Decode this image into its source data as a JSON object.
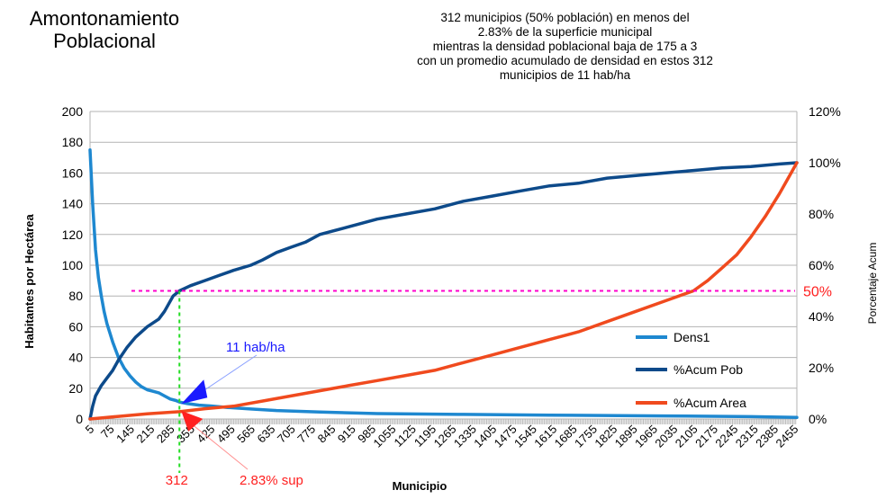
{
  "chart_data": {
    "type": "line",
    "title": [
      "Amontonamiento",
      "Poblacional"
    ],
    "subtitle": [
      "312 municipios (50% población) en menos del",
      "2.83% de la superficie municipal",
      "mientras la densidad poblacional baja de 175 a 3",
      "con un promedio acumulado de densidad en estos 312",
      "municipios de 11 hab/ha"
    ],
    "xlabel": "Municipio",
    "ylabel": "Habitantes por Hectárea",
    "y2label": "Porcentaje Acum",
    "xlim": [
      1,
      2460
    ],
    "ylim": [
      0,
      200
    ],
    "y2lim": [
      0,
      120
    ],
    "y_ticks": [
      "0",
      "20",
      "40",
      "60",
      "80",
      "100",
      "120",
      "140",
      "160",
      "180",
      "200"
    ],
    "y2_ticks": [
      "0%",
      "20%",
      "40%",
      "60%",
      "80%",
      "100%",
      "120%"
    ],
    "x_ticks": [
      "5",
      "75",
      "145",
      "215",
      "285",
      "355",
      "425",
      "495",
      "565",
      "635",
      "705",
      "775",
      "845",
      "915",
      "985",
      "1055",
      "1125",
      "1195",
      "1265",
      "1335",
      "1405",
      "1475",
      "1545",
      "1615",
      "1685",
      "1755",
      "1825",
      "1895",
      "1965",
      "2035",
      "2105",
      "2175",
      "2245",
      "2315",
      "2385",
      "2455"
    ],
    "grid": true,
    "legend_position": "right-bottom",
    "series": [
      {
        "name": "Dens1",
        "axis": "left",
        "color": "#1e88d0",
        "x": [
          1,
          10,
          20,
          30,
          40,
          50,
          60,
          70,
          80,
          90,
          100,
          120,
          140,
          160,
          180,
          200,
          220,
          240,
          260,
          280,
          300,
          312,
          340,
          380,
          420,
          480,
          560,
          650,
          800,
          1000,
          1300,
          1600,
          2000,
          2300,
          2460
        ],
        "values": [
          175,
          140,
          110,
          92,
          80,
          70,
          62,
          56,
          50,
          45,
          40,
          33,
          28,
          24,
          21,
          19,
          18,
          17,
          15,
          13,
          12,
          11,
          10,
          9,
          8.5,
          7.5,
          6.5,
          5.5,
          4.5,
          3.5,
          3,
          2.5,
          2,
          1.5,
          1
        ]
      },
      {
        "name": "%Acum Pob",
        "axis": "right",
        "color": "#0d4a8a",
        "x": [
          1,
          10,
          20,
          40,
          60,
          80,
          100,
          130,
          160,
          200,
          240,
          260,
          290,
          312,
          350,
          400,
          450,
          500,
          560,
          600,
          650,
          700,
          750,
          800,
          900,
          1000,
          1100,
          1200,
          1300,
          1400,
          1500,
          1600,
          1700,
          1800,
          1900,
          2000,
          2100,
          2200,
          2300,
          2400,
          2460
        ],
        "values": [
          0,
          5,
          9,
          13,
          16,
          19,
          23,
          28,
          32,
          36,
          39,
          42,
          48,
          50,
          52,
          54,
          56,
          58,
          60,
          62,
          65,
          67,
          69,
          72,
          75,
          78,
          80,
          82,
          85,
          87,
          89,
          91,
          92,
          94,
          95,
          96,
          97,
          98,
          98.5,
          99.5,
          100
        ]
      },
      {
        "name": "%Acum Area",
        "axis": "right",
        "color": "#f04a1e",
        "x": [
          1,
          100,
          200,
          312,
          400,
          500,
          600,
          700,
          800,
          900,
          1000,
          1100,
          1200,
          1300,
          1400,
          1500,
          1600,
          1700,
          1800,
          1900,
          2000,
          2100,
          2150,
          2200,
          2250,
          2300,
          2350,
          2400,
          2430,
          2460
        ],
        "values": [
          0,
          1,
          2,
          2.83,
          4,
          5,
          7,
          9,
          11,
          13,
          15,
          17,
          19,
          22,
          25,
          28,
          31,
          34,
          38,
          42,
          46,
          50,
          54,
          59,
          64,
          71,
          79,
          88,
          94,
          100
        ]
      }
    ],
    "annotations": {
      "hline_pct": 50,
      "hline_label": "50%",
      "vline_x": 312,
      "vline_label": "312",
      "density_label": "11 hab/ha",
      "area_label": "2.83% sup"
    }
  }
}
